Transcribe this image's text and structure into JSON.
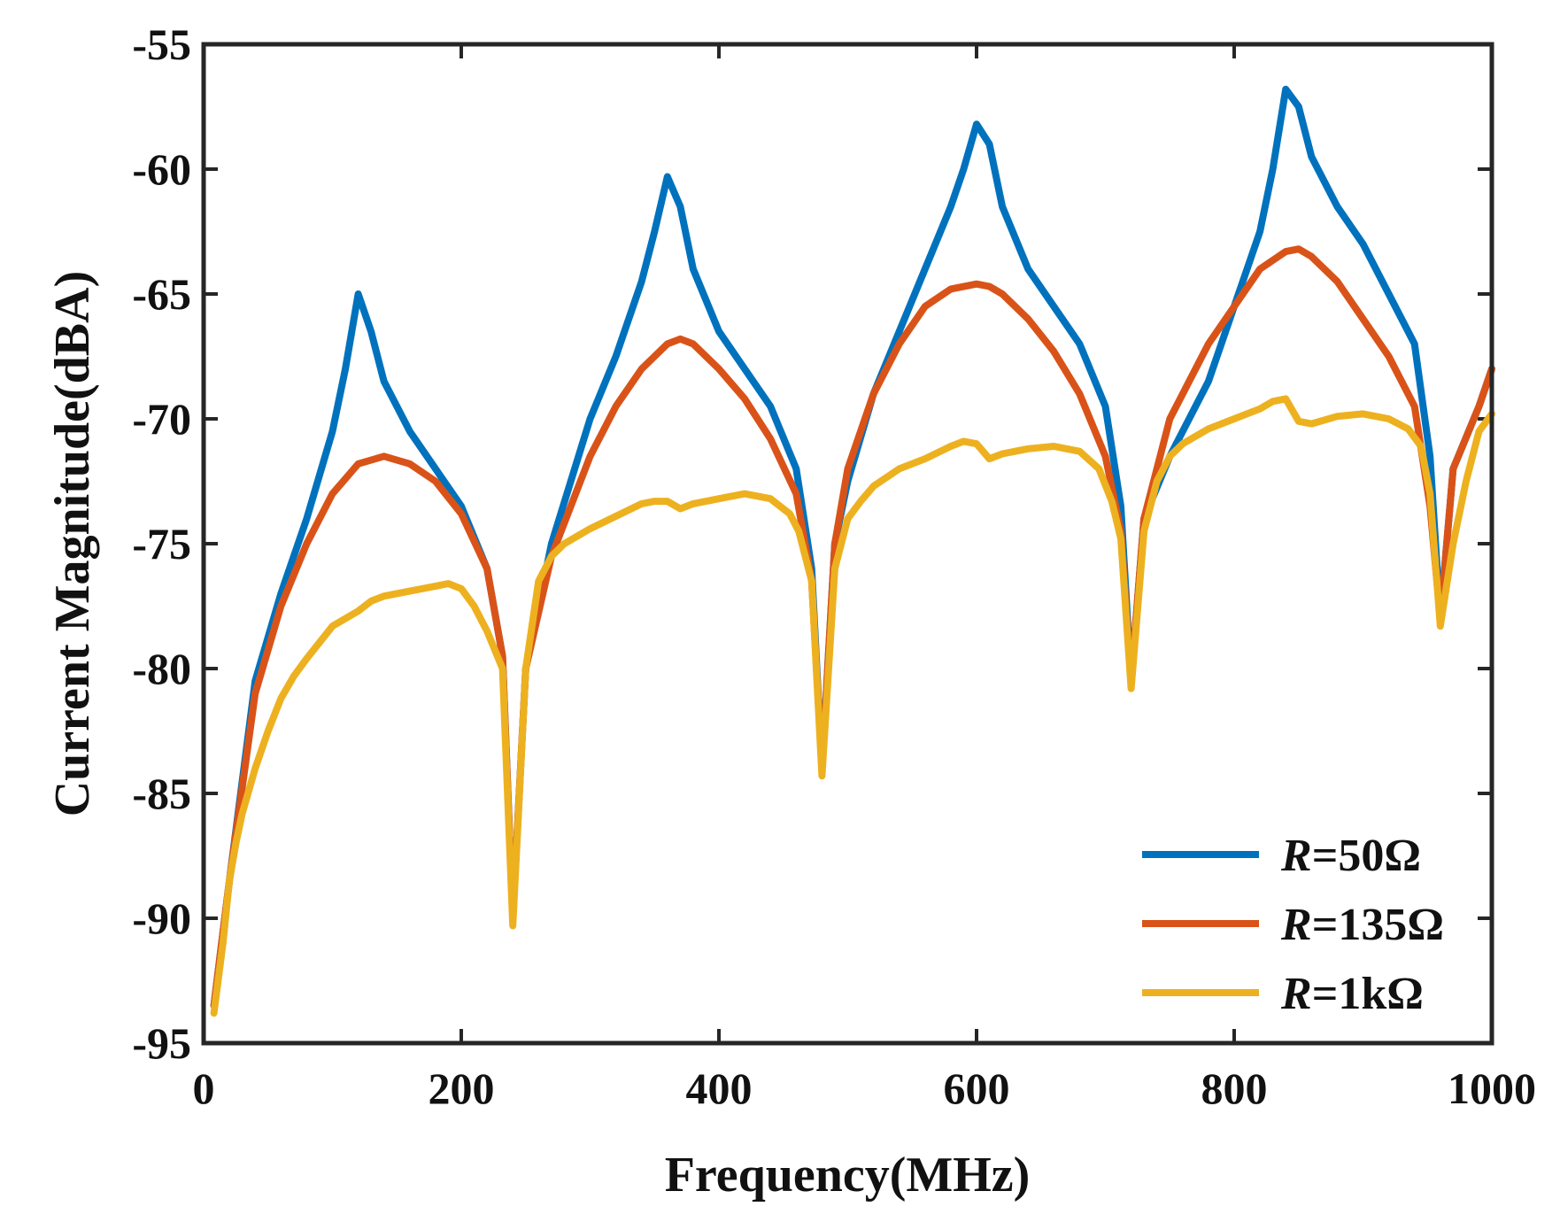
{
  "chart_data": {
    "type": "line",
    "title": "",
    "xlabel": "Frequency(MHz)",
    "ylabel": "Current Magnitude(dBA)",
    "xlim": [
      0,
      1000
    ],
    "ylim": [
      -95,
      -55
    ],
    "xticks": [
      0,
      200,
      400,
      600,
      800,
      1000
    ],
    "yticks": [
      -55,
      -60,
      -65,
      -70,
      -75,
      -80,
      -85,
      -90,
      -95
    ],
    "xtick_labels": [
      "0",
      "200",
      "400",
      "600",
      "800",
      "1000"
    ],
    "ytick_labels": [
      "-55",
      "-60",
      "-65",
      "-70",
      "-75",
      "-80",
      "-85",
      "-90",
      "-95"
    ],
    "grid": false,
    "legend_position": "bottom-right",
    "series": [
      {
        "name": "R=50Ω",
        "legend_prefix": "R",
        "legend_suffix": "=50Ω",
        "color": "#0072BD",
        "x": [
          8,
          20,
          40,
          60,
          80,
          100,
          110,
          120,
          130,
          140,
          160,
          180,
          200,
          220,
          232,
          240,
          250,
          270,
          300,
          320,
          340,
          350,
          360,
          370,
          380,
          400,
          420,
          440,
          460,
          472,
          480,
          490,
          500,
          520,
          540,
          560,
          580,
          590,
          600,
          610,
          620,
          640,
          660,
          680,
          700,
          712,
          720,
          730,
          750,
          780,
          800,
          820,
          830,
          840,
          850,
          860,
          880,
          900,
          920,
          940,
          952,
          960,
          970,
          990,
          1000
        ],
        "y": [
          -93.5,
          -88.5,
          -80.5,
          -77.0,
          -74.0,
          -70.5,
          -68.0,
          -65.0,
          -66.5,
          -68.5,
          -70.5,
          -72.0,
          -73.5,
          -76.0,
          -79.5,
          -90.0,
          -80.0,
          -75.0,
          -70.0,
          -67.5,
          -64.5,
          -62.5,
          -60.3,
          -61.5,
          -64.0,
          -66.5,
          -68.0,
          -69.5,
          -72.0,
          -76.0,
          -84.0,
          -75.0,
          -72.5,
          -69.0,
          -66.5,
          -64.0,
          -61.5,
          -60.0,
          -58.2,
          -59.0,
          -61.5,
          -64.0,
          -65.5,
          -67.0,
          -69.5,
          -73.5,
          -80.5,
          -74.0,
          -71.5,
          -68.5,
          -65.5,
          -62.5,
          -60.0,
          -56.8,
          -57.5,
          -59.5,
          -61.5,
          -63.0,
          -65.0,
          -67.0,
          -71.5,
          -78.0,
          -72.0,
          -69.5,
          -68.0
        ]
      },
      {
        "name": "R=135Ω",
        "legend_prefix": "R",
        "legend_suffix": "=135Ω",
        "color": "#D95319",
        "x": [
          8,
          20,
          40,
          60,
          80,
          100,
          120,
          140,
          160,
          180,
          200,
          220,
          232,
          240,
          250,
          270,
          300,
          320,
          340,
          360,
          370,
          380,
          400,
          420,
          440,
          460,
          472,
          480,
          490,
          500,
          520,
          540,
          560,
          580,
          600,
          610,
          620,
          640,
          660,
          680,
          700,
          712,
          720,
          730,
          750,
          780,
          800,
          820,
          840,
          850,
          860,
          880,
          900,
          920,
          940,
          952,
          960,
          970,
          990,
          1000
        ],
        "y": [
          -93.5,
          -88.5,
          -81.0,
          -77.5,
          -75.0,
          -73.0,
          -71.8,
          -71.5,
          -71.8,
          -72.5,
          -73.8,
          -76.0,
          -79.5,
          -90.0,
          -80.0,
          -75.5,
          -71.5,
          -69.5,
          -68.0,
          -67.0,
          -66.8,
          -67.0,
          -68.0,
          -69.2,
          -70.8,
          -73.0,
          -76.5,
          -84.0,
          -75.0,
          -72.0,
          -69.0,
          -67.0,
          -65.5,
          -64.8,
          -64.6,
          -64.7,
          -65.0,
          -66.0,
          -67.3,
          -69.0,
          -71.5,
          -74.5,
          -80.5,
          -74.0,
          -70.0,
          -67.0,
          -65.5,
          -64.0,
          -63.3,
          -63.2,
          -63.5,
          -64.5,
          -66.0,
          -67.5,
          -69.5,
          -73.5,
          -78.0,
          -72.0,
          -69.5,
          -68.0
        ]
      },
      {
        "name": "R=1kΩ",
        "legend_prefix": "R",
        "legend_suffix": "=1kΩ",
        "color": "#EDB120",
        "x": [
          8,
          15,
          20,
          25,
          30,
          40,
          50,
          60,
          70,
          80,
          100,
          120,
          130,
          140,
          160,
          180,
          190,
          200,
          210,
          220,
          232,
          240,
          250,
          260,
          270,
          280,
          300,
          320,
          340,
          350,
          360,
          370,
          380,
          400,
          420,
          440,
          455,
          462,
          472,
          480,
          490,
          500,
          510,
          520,
          540,
          560,
          580,
          590,
          600,
          610,
          620,
          640,
          660,
          680,
          695,
          705,
          712,
          720,
          730,
          740,
          750,
          760,
          780,
          800,
          820,
          830,
          840,
          850,
          860,
          880,
          900,
          920,
          935,
          945,
          952,
          960,
          970,
          980,
          990,
          1000
        ],
        "y": [
          -93.8,
          -91.0,
          -88.5,
          -87.0,
          -85.8,
          -84.0,
          -82.5,
          -81.2,
          -80.3,
          -79.6,
          -78.3,
          -77.7,
          -77.3,
          -77.1,
          -76.9,
          -76.7,
          -76.6,
          -76.8,
          -77.5,
          -78.5,
          -80.0,
          -90.3,
          -80.0,
          -76.5,
          -75.5,
          -75.0,
          -74.4,
          -73.9,
          -73.4,
          -73.3,
          -73.3,
          -73.6,
          -73.4,
          -73.2,
          -73.0,
          -73.2,
          -73.8,
          -74.5,
          -76.5,
          -84.3,
          -76.0,
          -74.0,
          -73.3,
          -72.7,
          -72.0,
          -71.6,
          -71.1,
          -70.9,
          -71.0,
          -71.6,
          -71.4,
          -71.2,
          -71.1,
          -71.3,
          -72.0,
          -73.3,
          -74.8,
          -80.8,
          -74.5,
          -72.5,
          -71.5,
          -71.0,
          -70.4,
          -70.0,
          -69.6,
          -69.3,
          -69.2,
          -70.1,
          -70.2,
          -69.9,
          -69.8,
          -70.0,
          -70.4,
          -71.1,
          -73.0,
          -78.3,
          -75.0,
          -72.5,
          -70.5,
          -69.8
        ]
      }
    ]
  }
}
